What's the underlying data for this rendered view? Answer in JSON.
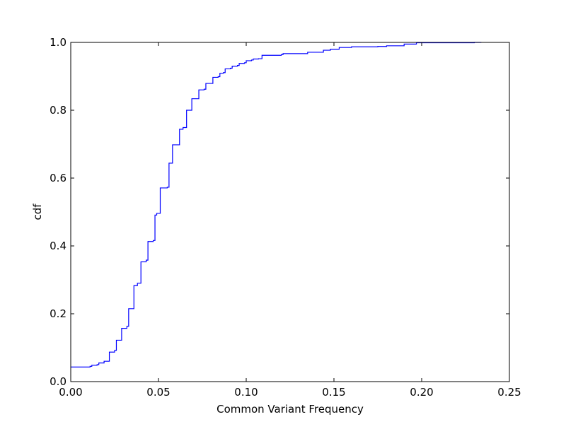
{
  "chart_data": {
    "type": "line",
    "title": "",
    "xlabel": "Common Variant Frequency",
    "ylabel": "cdf",
    "xlim": [
      0.0,
      0.25
    ],
    "ylim": [
      0.0,
      1.0
    ],
    "x_ticks": [
      "0.00",
      "0.05",
      "0.10",
      "0.15",
      "0.20",
      "0.25"
    ],
    "y_ticks": [
      "0.0",
      "0.2",
      "0.4",
      "0.6",
      "0.8",
      "1.0"
    ],
    "grid": false,
    "legend": "none",
    "series": [
      {
        "color": "#0000ff",
        "step": true,
        "points": [
          [
            0.0,
            0.043
          ],
          [
            0.011,
            0.045
          ],
          [
            0.012,
            0.048
          ],
          [
            0.015,
            0.05
          ],
          [
            0.016,
            0.055
          ],
          [
            0.019,
            0.06
          ],
          [
            0.022,
            0.065
          ],
          [
            0.022,
            0.087
          ],
          [
            0.025,
            0.092
          ],
          [
            0.026,
            0.122
          ],
          [
            0.029,
            0.157
          ],
          [
            0.032,
            0.163
          ],
          [
            0.033,
            0.215
          ],
          [
            0.036,
            0.22
          ],
          [
            0.036,
            0.283
          ],
          [
            0.038,
            0.29
          ],
          [
            0.04,
            0.353
          ],
          [
            0.043,
            0.358
          ],
          [
            0.044,
            0.413
          ],
          [
            0.047,
            0.416
          ],
          [
            0.048,
            0.491
          ],
          [
            0.049,
            0.496
          ],
          [
            0.051,
            0.571
          ],
          [
            0.055,
            0.573
          ],
          [
            0.056,
            0.644
          ],
          [
            0.058,
            0.648
          ],
          [
            0.058,
            0.698
          ],
          [
            0.062,
            0.7
          ],
          [
            0.062,
            0.744
          ],
          [
            0.064,
            0.749
          ],
          [
            0.066,
            0.8
          ],
          [
            0.069,
            0.8
          ],
          [
            0.069,
            0.834
          ],
          [
            0.072,
            0.834
          ],
          [
            0.073,
            0.86
          ],
          [
            0.076,
            0.862
          ],
          [
            0.077,
            0.879
          ],
          [
            0.08,
            0.879
          ],
          [
            0.081,
            0.897
          ],
          [
            0.084,
            0.899
          ],
          [
            0.085,
            0.909
          ],
          [
            0.087,
            0.911
          ],
          [
            0.088,
            0.922
          ],
          [
            0.091,
            0.924
          ],
          [
            0.092,
            0.93
          ],
          [
            0.095,
            0.932
          ],
          [
            0.096,
            0.938
          ],
          [
            0.099,
            0.94
          ],
          [
            0.1,
            0.946
          ],
          [
            0.103,
            0.948
          ],
          [
            0.104,
            0.951
          ],
          [
            0.107,
            0.952
          ],
          [
            0.109,
            0.962
          ],
          [
            0.12,
            0.964
          ],
          [
            0.121,
            0.967
          ],
          [
            0.135,
            0.971
          ],
          [
            0.144,
            0.977
          ],
          [
            0.148,
            0.98
          ],
          [
            0.153,
            0.985
          ],
          [
            0.16,
            0.987
          ],
          [
            0.175,
            0.988
          ],
          [
            0.18,
            0.99
          ],
          [
            0.19,
            0.995
          ],
          [
            0.197,
            0.999
          ],
          [
            0.23,
            1.0
          ],
          [
            0.234,
            1.0
          ]
        ]
      }
    ]
  }
}
